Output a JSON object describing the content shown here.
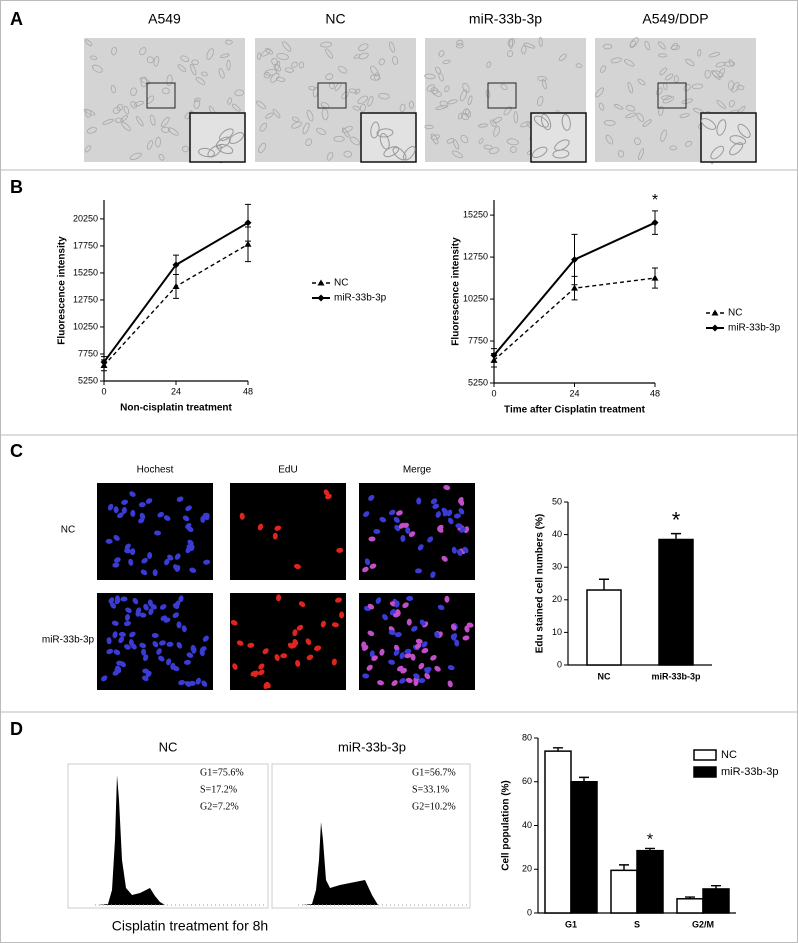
{
  "panel_labels": [
    "A",
    "B",
    "C",
    "D"
  ],
  "panel_a": {
    "images": [
      "A549",
      "NC",
      "miR-33b-3p",
      "A549/DDP"
    ]
  },
  "panel_c": {
    "columns": [
      "Hochest",
      "EdU",
      "Merge"
    ],
    "rows": [
      "NC",
      "miR-33b-3p"
    ]
  },
  "panel_d": {
    "histograms": [
      {
        "title": "NC",
        "stats": [
          "G1=75.6%",
          "S=17.2%",
          "G2=7.2%"
        ]
      },
      {
        "title": "miR-33b-3p",
        "stats": [
          "G1=56.7%",
          "S=33.1%",
          "G2=10.2%"
        ]
      }
    ],
    "caption": "Cisplatin treatment for 8h"
  },
  "chart_data": [
    {
      "type": "line",
      "x_label": "Non-cisplatin treatment",
      "y_label": "Fluorescence intensity",
      "x": [
        0,
        24,
        48
      ],
      "xlim": [
        0,
        48
      ],
      "xticks": [
        0,
        24,
        48
      ],
      "ylim": [
        5250,
        22000
      ],
      "yticks": [
        5250,
        7750,
        10250,
        12750,
        15250,
        17750,
        20250
      ],
      "series": [
        {
          "name": "NC",
          "color": "#000000",
          "dashed": true,
          "marker": "triangle",
          "values": [
            6700,
            14000,
            17900
          ],
          "errors": [
            500,
            1100,
            1600
          ]
        },
        {
          "name": "miR-33b-3p",
          "color": "#000000",
          "dashed": false,
          "marker": "diamond",
          "values": [
            7000,
            16000,
            19900
          ],
          "errors": [
            500,
            900,
            1700
          ]
        }
      ]
    },
    {
      "type": "line",
      "x_label": "Time after Cisplatin treatment",
      "y_label": "Fluorescence intensity",
      "x": [
        0,
        24,
        48
      ],
      "xlim": [
        0,
        48
      ],
      "xticks": [
        0,
        24,
        48
      ],
      "ylim": [
        5250,
        16150
      ],
      "yticks": [
        5250,
        7750,
        10250,
        12750,
        15250
      ],
      "annotation": "*",
      "series": [
        {
          "name": "NC",
          "color": "#000000",
          "dashed": true,
          "marker": "triangle",
          "values": [
            6600,
            10900,
            11500
          ],
          "errors": [
            400,
            700,
            600
          ]
        },
        {
          "name": "miR-33b-3p",
          "color": "#000000",
          "dashed": false,
          "marker": "diamond",
          "values": [
            6900,
            12600,
            14800
          ],
          "errors": [
            400,
            1500,
            700
          ]
        }
      ]
    },
    {
      "type": "bar",
      "y_label": "Edu stained cell numbers (%)",
      "categories": [
        "NC",
        "miR-33b-3p"
      ],
      "values": [
        23,
        38.5
      ],
      "errors": [
        3.3,
        1.8
      ],
      "colors": [
        "#ffffff",
        "#000000"
      ],
      "ylim": [
        0,
        50
      ],
      "yticks": [
        0,
        10,
        20,
        30,
        40,
        50
      ],
      "annotation": "*"
    },
    {
      "type": "grouped_bar",
      "y_label": "Cell population (%)",
      "categories": [
        "G1",
        "S",
        "G2/M"
      ],
      "ylim": [
        0,
        80
      ],
      "yticks": [
        0,
        20,
        40,
        60,
        80
      ],
      "annotation": "*",
      "series": [
        {
          "name": "NC",
          "color": "#ffffff",
          "values": [
            74,
            19.5,
            6.5
          ],
          "errors": [
            1.5,
            2.5,
            0.8
          ]
        },
        {
          "name": "miR-33b-3p",
          "color": "#000000",
          "values": [
            60,
            28.5,
            11
          ],
          "errors": [
            2,
            1,
            1.5
          ]
        }
      ]
    }
  ]
}
